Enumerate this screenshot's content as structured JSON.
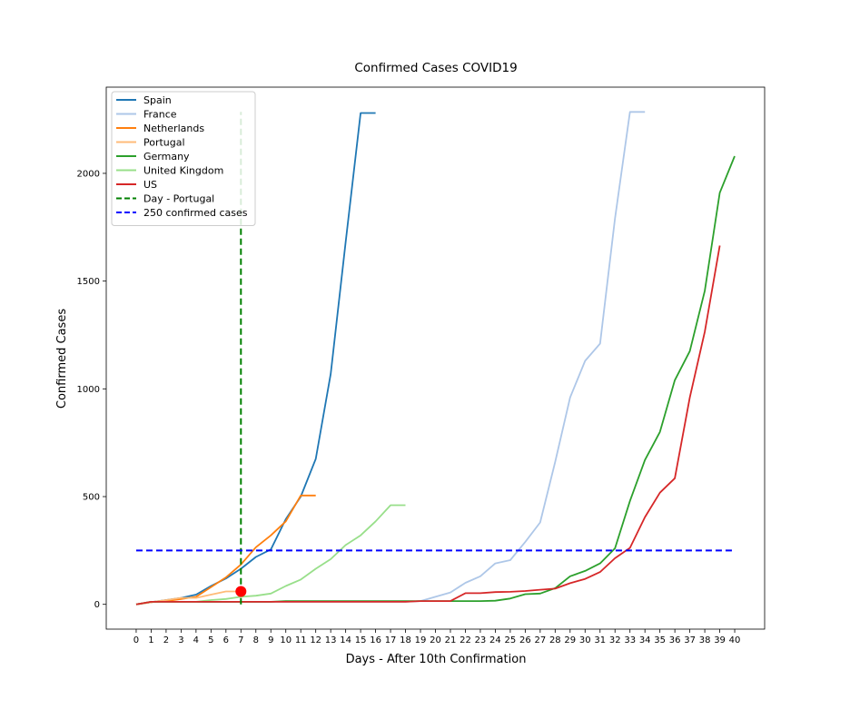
{
  "chart_data": {
    "type": "line",
    "title": "Confirmed Cases COVID19",
    "xlabel": "Days - After 10th Confirmation",
    "ylabel": "Confirmed Cases",
    "xlim": [
      -2,
      42
    ],
    "ylim": [
      -115,
      2400
    ],
    "x_ticks": [
      0,
      1,
      2,
      3,
      4,
      5,
      6,
      7,
      8,
      9,
      10,
      11,
      12,
      13,
      14,
      15,
      16,
      17,
      18,
      19,
      20,
      21,
      22,
      23,
      24,
      25,
      26,
      27,
      28,
      29,
      30,
      31,
      32,
      33,
      34,
      35,
      36,
      37,
      38,
      39,
      40
    ],
    "y_ticks": [
      0,
      500,
      1000,
      1500,
      2000
    ],
    "grid": false,
    "legend_position": "top-left",
    "series": [
      {
        "name": "Spain",
        "color": "#1f77b4",
        "x": [
          0,
          1,
          2,
          3,
          4,
          5,
          6,
          7,
          8,
          9,
          10,
          11,
          12,
          13,
          14,
          15,
          16
        ],
        "y": [
          0,
          10,
          20,
          30,
          45,
          85,
          120,
          165,
          220,
          255,
          395,
          500,
          675,
          1070,
          1680,
          2280,
          2280
        ]
      },
      {
        "name": "France",
        "color": "#aec7e8",
        "x": [
          0,
          1,
          2,
          3,
          4,
          5,
          6,
          7,
          8,
          9,
          10,
          11,
          12,
          13,
          14,
          15,
          16,
          17,
          18,
          19,
          20,
          21,
          22,
          23,
          24,
          25,
          26,
          27,
          28,
          29,
          30,
          31,
          32,
          33,
          34
        ],
        "y": [
          0,
          12,
          12,
          12,
          12,
          12,
          12,
          12,
          12,
          12,
          12,
          12,
          12,
          12,
          12,
          12,
          12,
          12,
          12,
          15,
          35,
          55,
          100,
          130,
          190,
          205,
          290,
          380,
          660,
          960,
          1130,
          1210,
          1790,
          2285,
          2285
        ]
      },
      {
        "name": "Netherlands",
        "color": "#ff7f0e",
        "x": [
          0,
          1,
          2,
          3,
          4,
          5,
          6,
          7,
          8,
          9,
          10,
          11,
          12
        ],
        "y": [
          0,
          10,
          15,
          25,
          35,
          80,
          125,
          185,
          265,
          320,
          385,
          505,
          505
        ]
      },
      {
        "name": "Portugal",
        "color": "#ffbb78",
        "x": [
          0,
          1,
          2,
          3,
          4,
          5,
          6,
          7
        ],
        "y": [
          0,
          10,
          20,
          30,
          30,
          45,
          60,
          60
        ]
      },
      {
        "name": "Germany",
        "color": "#2ca02c",
        "x": [
          0,
          1,
          2,
          3,
          4,
          5,
          6,
          7,
          8,
          9,
          10,
          11,
          12,
          13,
          14,
          15,
          16,
          17,
          18,
          19,
          20,
          21,
          22,
          23,
          24,
          25,
          26,
          27,
          28,
          29,
          30,
          31,
          32,
          33,
          34,
          35,
          36,
          37,
          38,
          39,
          40
        ],
        "y": [
          0,
          12,
          12,
          12,
          12,
          12,
          12,
          12,
          12,
          12,
          15,
          15,
          15,
          15,
          15,
          15,
          15,
          15,
          15,
          15,
          15,
          15,
          15,
          15,
          17,
          27,
          47,
          50,
          75,
          130,
          155,
          190,
          260,
          480,
          670,
          800,
          1040,
          1175,
          1455,
          1910,
          2080
        ]
      },
      {
        "name": "United Kingdom",
        "color": "#98df8a",
        "x": [
          0,
          1,
          2,
          3,
          4,
          5,
          6,
          7,
          8,
          9,
          10,
          11,
          12,
          13,
          14,
          15,
          16,
          17,
          18
        ],
        "y": [
          0,
          12,
          12,
          12,
          12,
          20,
          25,
          35,
          40,
          50,
          85,
          115,
          165,
          210,
          275,
          320,
          385,
          460,
          460
        ]
      },
      {
        "name": "US",
        "color": "#d62728",
        "x": [
          0,
          1,
          2,
          3,
          4,
          5,
          6,
          7,
          8,
          9,
          10,
          11,
          12,
          13,
          14,
          15,
          16,
          17,
          18,
          19,
          20,
          21,
          22,
          23,
          24,
          25,
          26,
          27,
          28,
          29,
          30,
          31,
          32,
          33,
          34,
          35,
          36,
          37,
          38,
          39
        ],
        "y": [
          0,
          12,
          12,
          12,
          12,
          12,
          12,
          12,
          12,
          12,
          12,
          12,
          12,
          12,
          12,
          12,
          12,
          12,
          12,
          15,
          15,
          15,
          52,
          52,
          57,
          58,
          62,
          68,
          73,
          98,
          118,
          150,
          214,
          262,
          405,
          518,
          585,
          960,
          1265,
          1665
        ]
      }
    ],
    "reference_lines": [
      {
        "name": "Day - Portugal",
        "color": "#008000",
        "orientation": "vertical",
        "x": 7,
        "y_range": [
          0,
          2285
        ]
      },
      {
        "name": "250  confirmed cases",
        "color": "#0000ff",
        "orientation": "horizontal",
        "y": 250,
        "x_range": [
          0,
          40
        ]
      }
    ],
    "marker": {
      "x": 7,
      "y": 60,
      "color": "#ff0000"
    }
  }
}
